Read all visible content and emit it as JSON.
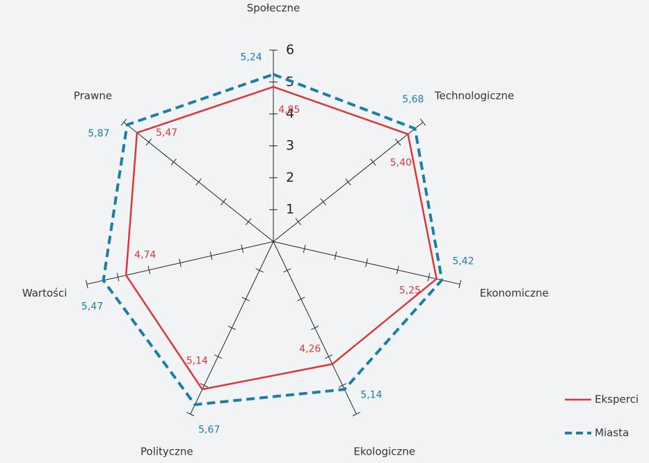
{
  "chart_data": {
    "type": "radar",
    "categories": [
      "Społeczne",
      "Technologiczne",
      "Ekonomiczne",
      "Ekologiczne",
      "Polityczne",
      "Wartości",
      "Prawne"
    ],
    "series": [
      {
        "name": "Eksperci",
        "color": "#d9383a",
        "dashed": false,
        "values": [
          4.85,
          5.4,
          5.25,
          4.26,
          5.14,
          4.74,
          5.47
        ],
        "value_labels": [
          "4,85",
          "5,40",
          "5,25",
          "4,26",
          "5,14",
          "4,74",
          "5,47"
        ]
      },
      {
        "name": "Miasta",
        "color": "#1a7fa6",
        "dashed": true,
        "values": [
          5.24,
          5.68,
          5.42,
          5.14,
          5.67,
          5.47,
          5.87
        ],
        "value_labels": [
          "5,24",
          "5,68",
          "5,42",
          "5,14",
          "5,67",
          "5,47",
          "5,87"
        ]
      }
    ],
    "ylim": [
      0,
      6
    ],
    "yticks": [
      1,
      2,
      3,
      4,
      5,
      6
    ]
  }
}
